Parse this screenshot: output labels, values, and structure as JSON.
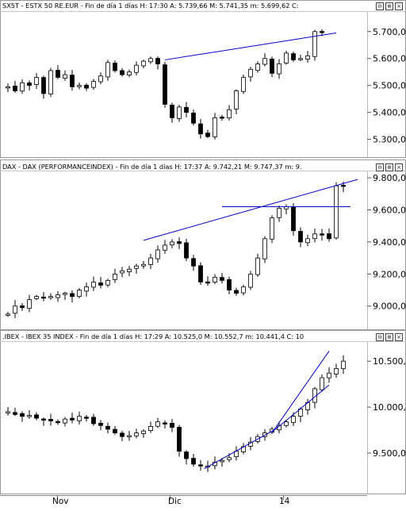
{
  "colors": {
    "trendline": "#0000cc",
    "up_candle": "#ffffff",
    "down_candle": "#000000",
    "grid": "#aaaaaa"
  },
  "panels": [
    {
      "header": "SX5T - ESTX 50 RE.EUR - Fin de día 1 días  H: 17:30  A: 5.739,66  M: 5.741,35  m: 5.699,62  C:"
    },
    {
      "header": "DAX - DAX (PERFORMANCEINDEX) - Fin de día 1 días  H: 17:37  A: 9.742,21  M: 9.747,37  m: 9."
    },
    {
      "header": ".IBEX - IBEX 35 INDEX - Fin de día 1 días  H: 17:29  A: 10.525,0  M: 10.552,7  m: 10.441,4  C: 10"
    }
  ],
  "window_buttons": [
    "⊖",
    "⊕",
    "×"
  ],
  "x_axis": {
    "labels": [
      "Nov",
      "Dic",
      "14"
    ]
  },
  "chart_data": [
    {
      "type": "candlestick",
      "name": "SX5T - ESTX 50 RE.EUR",
      "ylim": [
        5240,
        5770
      ],
      "y_ticks": [
        "5.300,0",
        "5.400,0",
        "5.500,0",
        "5.600,0",
        "5.700,0"
      ],
      "y_tick_values": [
        5300,
        5400,
        5500,
        5600,
        5700
      ],
      "anchors": [
        5495,
        5480,
        5510,
        5500,
        5530,
        5470,
        5555,
        5530,
        5540,
        5495,
        5500,
        5490,
        5515,
        5535,
        5585,
        5555,
        5540,
        5550,
        5575,
        5590,
        5600,
        5580,
        5430,
        5380,
        5420,
        5400,
        5360,
        5320,
        5310,
        5380,
        5380,
        5410,
        5480,
        5530,
        5560,
        5580,
        5600,
        5545,
        5580,
        5620,
        5595,
        5600,
        5610,
        5700,
        5700
      ],
      "trendlines": [
        {
          "x1": 22.0,
          "y1": 5595,
          "x2": 46.0,
          "y2": 5695
        }
      ]
    },
    {
      "type": "candlestick",
      "name": "DAX - DAX (PERFORMANCEINDEX)",
      "ylim": [
        8880,
        9830
      ],
      "y_ticks": [
        "9.000,0",
        "9.200,0",
        "9.400,0",
        "9.600,0",
        "9.800,0"
      ],
      "y_tick_values": [
        9000,
        9200,
        9400,
        9600,
        9800
      ],
      "anchors": [
        8950,
        9000,
        8990,
        9040,
        9060,
        9050,
        9060,
        9070,
        9080,
        9060,
        9100,
        9120,
        9150,
        9130,
        9160,
        9200,
        9220,
        9230,
        9250,
        9260,
        9300,
        9350,
        9380,
        9400,
        9390,
        9300,
        9250,
        9150,
        9150,
        9180,
        9160,
        9100,
        9080,
        9120,
        9200,
        9300,
        9420,
        9550,
        9610,
        9620,
        9470,
        9400,
        9420,
        9450,
        9450,
        9420,
        9750,
        9750
      ],
      "trendlines": [
        {
          "x1": 19.0,
          "y1": 9410,
          "x2": 49.0,
          "y2": 9790
        },
        {
          "x1": 30.0,
          "y1": 9620,
          "x2": 48.0,
          "y2": 9620
        }
      ]
    },
    {
      "type": "candlestick",
      "name": ".IBEX - IBEX 35 INDEX",
      "ylim": [
        9060,
        10700
      ],
      "y_ticks": [
        "9.500,0",
        "10.000,0",
        "10.500,0"
      ],
      "y_tick_values": [
        9500,
        10000,
        10500
      ],
      "anchors": [
        9950,
        9920,
        9900,
        9910,
        9880,
        9860,
        9850,
        9840,
        9870,
        9860,
        9900,
        9880,
        9820,
        9800,
        9760,
        9720,
        9680,
        9690,
        9720,
        9740,
        9790,
        9840,
        9820,
        9780,
        9520,
        9440,
        9380,
        9370,
        9360,
        9400,
        9420,
        9450,
        9520,
        9570,
        9620,
        9680,
        9720,
        9760,
        9800,
        9840,
        9900,
        9980,
        10050,
        10200,
        10320,
        10370,
        10420,
        10500
      ],
      "trendlines": [
        {
          "x1": 27.5,
          "y1": 9330,
          "x2": 37.5,
          "y2": 9760
        },
        {
          "x1": 37.5,
          "y1": 9760,
          "x2": 45.0,
          "y2": 10240
        },
        {
          "x1": 37.0,
          "y1": 9720,
          "x2": 45.0,
          "y2": 10610
        }
      ]
    }
  ]
}
